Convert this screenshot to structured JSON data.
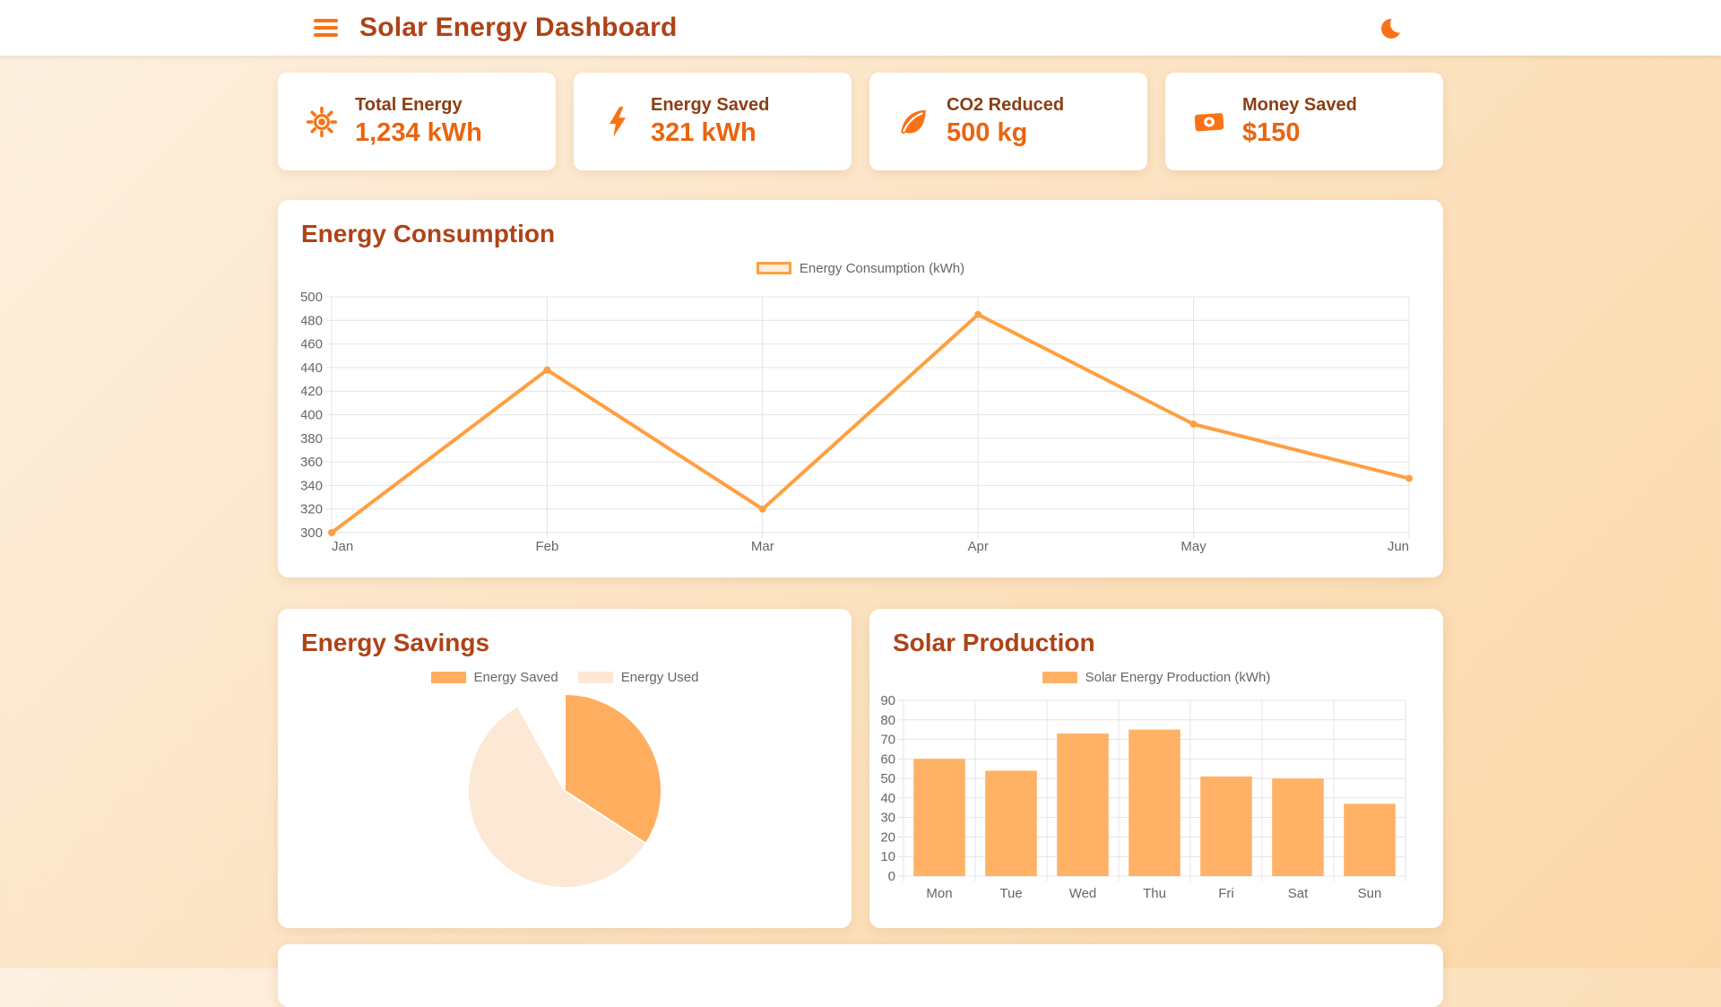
{
  "header": {
    "title": "Solar Energy Dashboard"
  },
  "icons": [
    "menu-icon",
    "moon-icon",
    "sun-icon",
    "bolt-icon",
    "leaf-icon",
    "money-icon"
  ],
  "stats": [
    {
      "icon": "sun-icon",
      "label": "Total Energy",
      "value": "1,234 kWh"
    },
    {
      "icon": "bolt-icon",
      "label": "Energy Saved",
      "value": "321 kWh"
    },
    {
      "icon": "leaf-icon",
      "label": "CO2 Reduced",
      "value": "500 kg"
    },
    {
      "icon": "money-icon",
      "label": "Money Saved",
      "value": "$150"
    }
  ],
  "colors": {
    "accent": "#F97316",
    "heading": "#AE4317",
    "stat_label": "#8B3E14",
    "stat_value": "#E8650F",
    "line": "#FF9F40",
    "line_fill": "#FFECD9",
    "bar": "#FFB266",
    "pie_primary": "#FFAD5F",
    "pie_secondary": "#FCE8D5",
    "tick": "#666666",
    "grid": "#E4E4E4",
    "background_from": "#FDF0E0",
    "background_to": "#FBD7A8"
  },
  "chart_data": [
    {
      "id": "consumption",
      "type": "line",
      "title": "Energy Consumption",
      "categories": [
        "Jan",
        "Feb",
        "Mar",
        "Apr",
        "May",
        "Jun"
      ],
      "series": [
        {
          "name": "Energy Consumption (kWh)",
          "values": [
            300,
            438,
            320,
            485,
            392,
            346
          ]
        }
      ],
      "ylim": [
        300,
        500
      ],
      "ystep": 20,
      "grid": true,
      "legend_position": "top"
    },
    {
      "id": "savings",
      "type": "pie",
      "title": "Energy Savings",
      "slices": [
        {
          "label": "Energy Saved",
          "degrees": 123,
          "approx_pct": 34
        },
        {
          "label": "Energy Used",
          "degrees": 208,
          "approx_pct": 58
        }
      ],
      "empty_degrees": 29,
      "legend_position": "top"
    },
    {
      "id": "production",
      "type": "bar",
      "title": "Solar Production",
      "categories": [
        "Mon",
        "Tue",
        "Wed",
        "Thu",
        "Fri",
        "Sat",
        "Sun"
      ],
      "series": [
        {
          "name": "Solar Energy Production (kWh)",
          "values": [
            60,
            54,
            73,
            75,
            51,
            50,
            37
          ]
        }
      ],
      "ylim": [
        0,
        90
      ],
      "ystep": 10,
      "grid": true,
      "legend_position": "top"
    }
  ]
}
